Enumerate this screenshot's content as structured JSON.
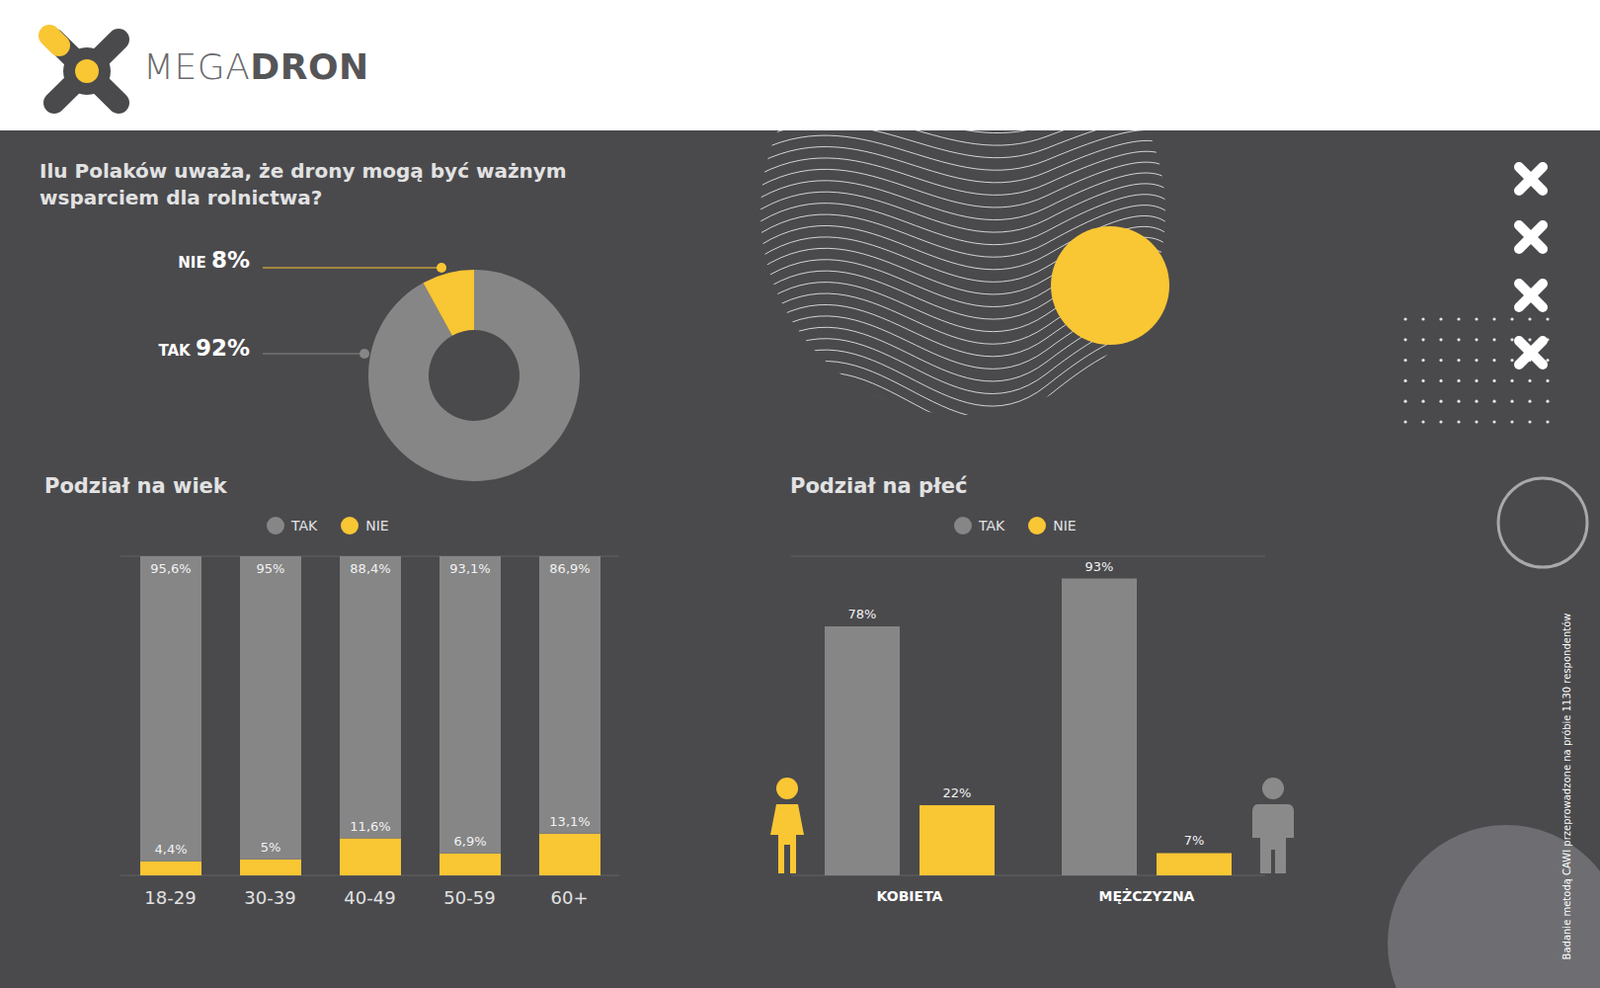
{
  "logo": {
    "light": "MEGA",
    "bold": "DRON"
  },
  "note": "Badanie metodą CAWI przeprowadzone na próbie 1130 respondentów",
  "chart_data": [
    {
      "type": "pie",
      "title": "Ilu Polaków uważa, że drony mogą być ważnym wsparciem dla rolnictwa?",
      "categories": [
        "TAK",
        "NIE"
      ],
      "values": [
        92,
        8
      ],
      "value_labels": [
        "92%",
        "8%"
      ],
      "colors": [
        "#868686",
        "#f9c634"
      ],
      "data_labels": true
    },
    {
      "type": "bar",
      "title": "Podział na wiek",
      "stacked": true,
      "categories": [
        "18-29",
        "30-39",
        "40-49",
        "50-59",
        "60+"
      ],
      "series": [
        {
          "name": "TAK",
          "color": "#868686",
          "values": [
            95.6,
            95,
            88.4,
            93.1,
            86.9
          ],
          "value_labels": [
            "95,6%",
            "95%",
            "88,4%",
            "93,1%",
            "86,9%"
          ]
        },
        {
          "name": "NIE",
          "color": "#f9c634",
          "values": [
            4.4,
            5,
            11.6,
            6.9,
            13.1
          ],
          "value_labels": [
            "4,4%",
            "5%",
            "11,6%",
            "6,9%",
            "13,1%"
          ]
        }
      ],
      "ylim": [
        0,
        100
      ],
      "yticks": [
        0,
        20,
        40,
        60,
        80,
        100
      ],
      "grid": true,
      "legend": "top",
      "data_labels": true,
      "tick_labels": "x"
    },
    {
      "type": "bar",
      "title": "Podział na płeć",
      "categories": [
        "KOBIETA",
        "MĘŻCZYZNA"
      ],
      "series": [
        {
          "name": "TAK",
          "color": "#868686",
          "values": [
            78,
            93
          ],
          "value_labels": [
            "78%",
            "93%"
          ]
        },
        {
          "name": "NIE",
          "color": "#f9c634",
          "values": [
            22,
            7
          ],
          "value_labels": [
            "22%",
            "7%"
          ]
        }
      ],
      "ylim": [
        0,
        100
      ],
      "yticks": [
        0,
        20,
        40,
        60,
        80,
        100
      ],
      "grid": true,
      "legend": "top",
      "data_labels": true,
      "tick_labels": "x"
    }
  ]
}
